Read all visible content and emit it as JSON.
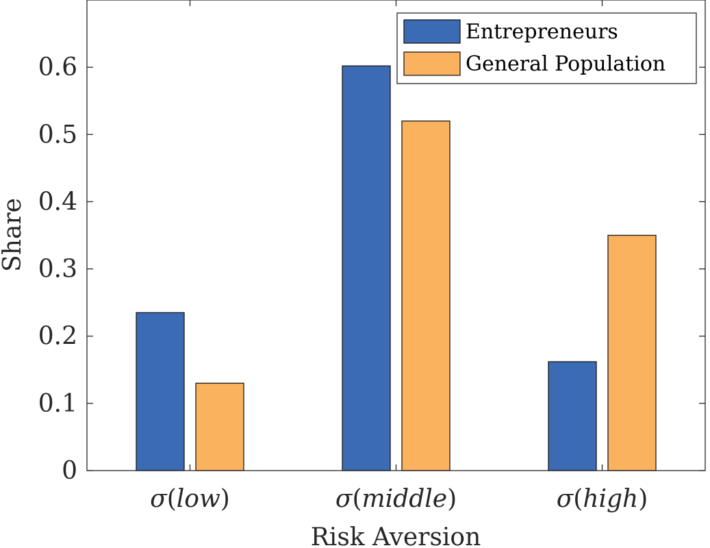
{
  "chart_data": {
    "type": "bar",
    "title": "",
    "xlabel": "Risk Aversion",
    "ylabel": "Share",
    "ylim": [
      0,
      0.7
    ],
    "yticks": [
      0,
      0.1,
      0.2,
      0.3,
      0.4,
      0.5,
      0.6
    ],
    "ytick_labels": [
      "0",
      "0.1",
      "0.2",
      "0.3",
      "0.4",
      "0.5",
      "0.6"
    ],
    "categories": [
      {
        "sym": "σ",
        "open": "(",
        "arg": "low",
        "close": ")"
      },
      {
        "sym": "σ",
        "open": "(",
        "arg": "middle",
        "close": ")"
      },
      {
        "sym": "σ",
        "open": "(",
        "arg": "high",
        "close": ")"
      }
    ],
    "series": [
      {
        "name": "Entrepreneurs",
        "color": "#3a6bb4",
        "values": [
          0.235,
          0.602,
          0.162
        ]
      },
      {
        "name": "General Population",
        "color": "#fbb25e",
        "values": [
          0.13,
          0.52,
          0.35
        ]
      }
    ],
    "grid": false,
    "legend_position": "top-right"
  }
}
